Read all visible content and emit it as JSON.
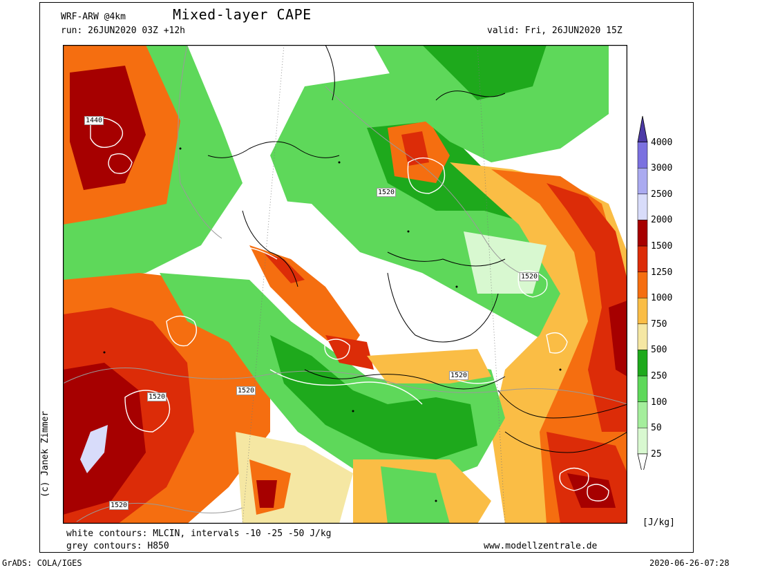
{
  "header": {
    "model": "WRF-ARW @4km",
    "title": "Mixed-layer CAPE",
    "run": "run: 26JUN2020 03Z +12h",
    "valid": "valid: Fri, 26JUN2020 15Z"
  },
  "credit": "(c) Janek Zimmer",
  "footer": {
    "line1": "white contours: MLCIN, intervals -10 -25 -50 J/kg",
    "line2": "grey contours: H850",
    "site": "www.modellzentrale.de",
    "software": "GrADS: COLA/IGES",
    "timestamp": "2020-06-26-07:28"
  },
  "colorbar": {
    "unit": "[J/kg]",
    "labels": [
      "25",
      "50",
      "100",
      "250",
      "500",
      "750",
      "1000",
      "1250",
      "1500",
      "2000",
      "2500",
      "3000",
      "4000"
    ],
    "colors": [
      "#d8f8d0",
      "#a4ee9c",
      "#5ed85a",
      "#1ea91c",
      "#f5e7a3",
      "#fabd45",
      "#f56e10",
      "#dc2c08",
      "#a60000",
      "#d8dcfa",
      "#aaaaf0",
      "#7b71e0",
      "#4c3aa6"
    ]
  },
  "contour_labels": [
    "1440",
    "1520",
    "1520",
    "1520",
    "1520",
    "1520",
    "1520"
  ]
}
